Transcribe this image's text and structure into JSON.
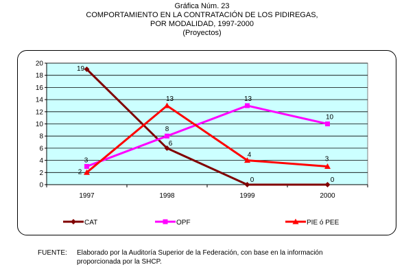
{
  "header": {
    "line1": "Gráfica Núm. 23",
    "line2": "COMPORTAMIENTO EN LA CONTRATACIÓN DE LOS PIDIREGAS,",
    "line3": "POR MODALIDAD, 1997-2000",
    "line4": "(Proyectos)"
  },
  "source": {
    "label": "FUENTE:",
    "text_line1": "Elaborado por la Auditoría Superior de la Federación, con base en la información",
    "text_line2": "proporcionada por la SHCP."
  },
  "chart_data": {
    "type": "line",
    "title": "Gráfica Núm. 23 COMPORTAMIENTO EN LA CONTRATACIÓN DE LOS PIDIREGAS, POR MODALIDAD, 1997-2000 (Proyectos)",
    "xlabel": "",
    "ylabel": "",
    "categories": [
      "1997",
      "1998",
      "1999",
      "2000"
    ],
    "ylim": [
      0,
      20
    ],
    "yticks": [
      0,
      2,
      4,
      6,
      8,
      10,
      12,
      14,
      16,
      18,
      20
    ],
    "grid": true,
    "plot_background": "#ccffff",
    "legend_position": "bottom",
    "series": [
      {
        "name": "CAT",
        "values": [
          19,
          6,
          0,
          0
        ],
        "color": "#800000",
        "marker": "diamond"
      },
      {
        "name": "OPF",
        "values": [
          3,
          8,
          13,
          10
        ],
        "color": "#ff00ff",
        "marker": "square"
      },
      {
        "name": "PIE ó PEE",
        "values": [
          2,
          13,
          4,
          3
        ],
        "color": "#ff0000",
        "marker": "triangle"
      }
    ],
    "data_labels": [
      {
        "series": "CAT",
        "index": 0,
        "text": "19"
      },
      {
        "series": "CAT",
        "index": 1,
        "text": "6"
      },
      {
        "series": "CAT",
        "index": 2,
        "text": "0"
      },
      {
        "series": "CAT",
        "index": 3,
        "text": "0"
      },
      {
        "series": "OPF",
        "index": 0,
        "text": "3"
      },
      {
        "series": "OPF",
        "index": 1,
        "text": "8"
      },
      {
        "series": "OPF",
        "index": 2,
        "text": "13"
      },
      {
        "series": "OPF",
        "index": 3,
        "text": "10"
      },
      {
        "series": "PIE ó PEE",
        "index": 0,
        "text": "2"
      },
      {
        "series": "PIE ó PEE",
        "index": 1,
        "text": "13"
      },
      {
        "series": "PIE ó PEE",
        "index": 2,
        "text": "4"
      },
      {
        "series": "PIE ó PEE",
        "index": 3,
        "text": "3"
      }
    ]
  }
}
